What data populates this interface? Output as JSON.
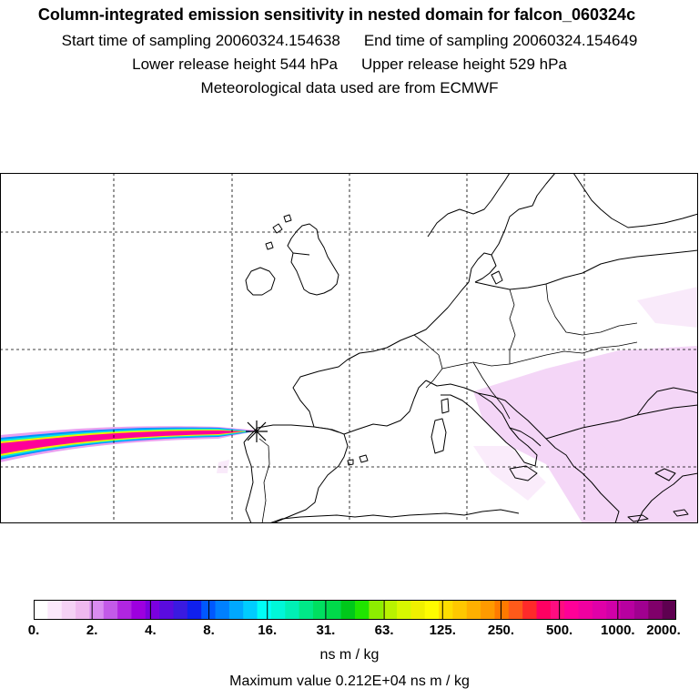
{
  "header": {
    "title": "Column-integrated emission sensitivity in nested domain for falcon_060324c",
    "start_label": "Start time of sampling 20060324.154638",
    "end_label": "End time of sampling 20060324.154649",
    "lower_label": "Lower release height  544 hPa",
    "upper_label": "Upper release height  529 hPa",
    "met_label": "Meteorological data used are from ECMWF"
  },
  "colorbar": {
    "ticks": [
      "0.",
      "2.",
      "4.",
      "8.",
      "16.",
      "31.",
      "63.",
      "125.",
      "250.",
      "500.",
      "1000.",
      "2000."
    ],
    "colors": [
      "#ffffff",
      "#fbe8fb",
      "#f5d2f5",
      "#efb9ef",
      "#d98cf0",
      "#c35ae8",
      "#b026e0",
      "#9d00df",
      "#7b00df",
      "#5a0bdf",
      "#3a1ae0",
      "#1020ee",
      "#0058ff",
      "#0080ff",
      "#00a8ff",
      "#00cdff",
      "#00fdf6",
      "#00f7d8",
      "#00f0b5",
      "#00e888",
      "#00df60",
      "#00d94a",
      "#00c81a",
      "#20e400",
      "#8dee00",
      "#b8f200",
      "#d8f800",
      "#f0f000",
      "#fffc00",
      "#ffdd00",
      "#ffc800",
      "#ffb000",
      "#ff9a00",
      "#ff7a00",
      "#ff5a1a",
      "#ff2a2a",
      "#ff0062",
      "#ff0d80",
      "#ff0098",
      "#f000a0",
      "#e000a8",
      "#d000a8",
      "#b800a0",
      "#a00090",
      "#80006a",
      "#5e0050"
    ],
    "units": "ns m / kg",
    "max_value": "Maximum value  0.212E+04 ns m / kg"
  },
  "plume_colors": {
    "outer": "#e8a0f0",
    "blue": "#0090ff",
    "cyan": "#00e8e0",
    "yellow": "#f0f000",
    "magenta": "#ff0098",
    "faint": "#f0c8f4"
  }
}
